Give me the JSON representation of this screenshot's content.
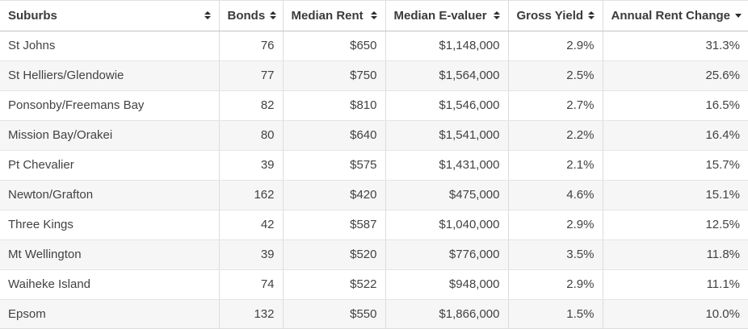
{
  "table": {
    "columns": [
      {
        "key": "suburbs",
        "label": "Suburbs",
        "sort_state": "unsorted",
        "sort_icon": "sort-toggle-icon"
      },
      {
        "key": "bonds",
        "label": "Bonds",
        "sort_state": "unsorted",
        "sort_icon": "sort-toggle-icon"
      },
      {
        "key": "median-rent",
        "label": "Median Rent",
        "sort_state": "unsorted",
        "sort_icon": "sort-toggle-icon"
      },
      {
        "key": "median-e-valuer",
        "label": "Median E-valuer",
        "sort_state": "unsorted",
        "sort_icon": "sort-toggle-icon"
      },
      {
        "key": "gross-yield",
        "label": "Gross Yield",
        "sort_state": "unsorted",
        "sort_icon": "sort-toggle-icon"
      },
      {
        "key": "annual-rent-change",
        "label": "Annual Rent Change",
        "sort_state": "descending",
        "sort_icon": "sort-descending-icon"
      }
    ],
    "rows": [
      [
        "St Johns",
        "76",
        "$650",
        "$1,148,000",
        "2.9%",
        "31.3%"
      ],
      [
        "St Helliers/Glendowie",
        "77",
        "$750",
        "$1,564,000",
        "2.5%",
        "25.6%"
      ],
      [
        "Ponsonby/Freemans Bay",
        "82",
        "$810",
        "$1,546,000",
        "2.7%",
        "16.5%"
      ],
      [
        "Mission Bay/Orakei",
        "80",
        "$640",
        "$1,541,000",
        "2.2%",
        "16.4%"
      ],
      [
        "Pt Chevalier",
        "39",
        "$575",
        "$1,431,000",
        "2.1%",
        "15.7%"
      ],
      [
        "Newton/Grafton",
        "162",
        "$420",
        "$475,000",
        "4.6%",
        "15.1%"
      ],
      [
        "Three Kings",
        "42",
        "$587",
        "$1,040,000",
        "2.9%",
        "12.5%"
      ],
      [
        "Mt Wellington",
        "39",
        "$520",
        "$776,000",
        "3.5%",
        "11.8%"
      ],
      [
        "Waiheke Island",
        "74",
        "$522",
        "$948,000",
        "2.9%",
        "11.1%"
      ],
      [
        "Epsom",
        "132",
        "$550",
        "$1,866,000",
        "1.5%",
        "10.0%"
      ]
    ],
    "colors": {
      "header_text": "#3b3b3b",
      "cell_text": "#424242",
      "stripe_background": "#f6f6f6",
      "column_border": "#dcdcdc",
      "row_border": "#e4e4e4",
      "header_bottom_border": "#c3c3c3",
      "sort_icon": "#2b2b2b"
    }
  }
}
